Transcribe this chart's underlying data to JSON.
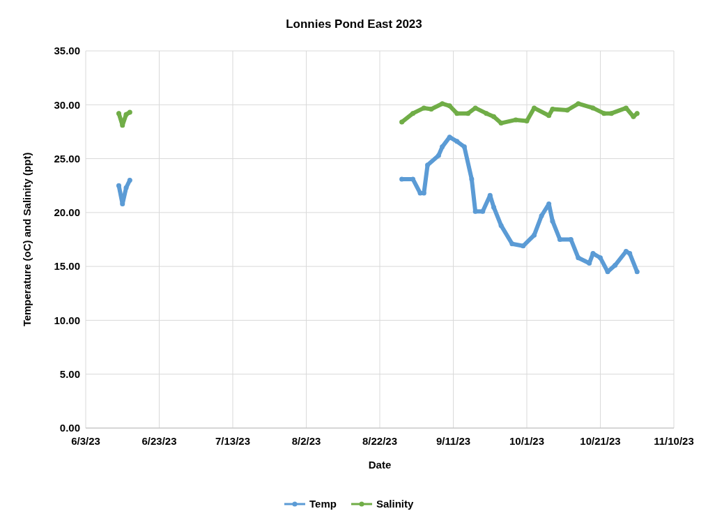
{
  "chart_data": {
    "type": "line",
    "title": "Lonnies Pond East 2023",
    "xlabel": "Date",
    "ylabel": "Temperature (oC) and Salinity (ppt)",
    "xlim": [
      "2023-06-03",
      "2023-11-10"
    ],
    "xticks": [
      {
        "value": "2023-06-03",
        "label": "6/3/23"
      },
      {
        "value": "2023-06-23",
        "label": "6/23/23"
      },
      {
        "value": "2023-07-13",
        "label": "7/13/23"
      },
      {
        "value": "2023-08-02",
        "label": "8/2/23"
      },
      {
        "value": "2023-08-22",
        "label": "8/22/23"
      },
      {
        "value": "2023-09-11",
        "label": "9/11/23"
      },
      {
        "value": "2023-10-01",
        "label": "10/1/23"
      },
      {
        "value": "2023-10-21",
        "label": "10/21/23"
      },
      {
        "value": "2023-11-10",
        "label": "11/10/23"
      }
    ],
    "ylim": [
      0,
      35
    ],
    "yticks": [
      {
        "value": 0,
        "label": "0.00"
      },
      {
        "value": 5,
        "label": "5.00"
      },
      {
        "value": 10,
        "label": "10.00"
      },
      {
        "value": 15,
        "label": "15.00"
      },
      {
        "value": 20,
        "label": "20.00"
      },
      {
        "value": 25,
        "label": "25.00"
      },
      {
        "value": 30,
        "label": "30.00"
      },
      {
        "value": 35,
        "label": "35.00"
      }
    ],
    "grid": true,
    "legend": "bottom",
    "marker": "circle",
    "line_style": "solid",
    "series": [
      {
        "name": "Temp",
        "color": "#5b9bd5",
        "x": [
          "2023-06-12",
          "2023-06-13",
          "2023-06-14",
          "2023-06-15",
          "2023-07-20",
          "2023-08-28",
          "2023-08-31",
          "2023-09-02",
          "2023-09-03",
          "2023-09-04",
          "2023-09-07",
          "2023-09-08",
          "2023-09-10",
          "2023-09-12",
          "2023-09-14",
          "2023-09-16",
          "2023-09-17",
          "2023-09-19",
          "2023-09-21",
          "2023-09-22",
          "2023-09-24",
          "2023-09-27",
          "2023-09-30",
          "2023-10-03",
          "2023-10-05",
          "2023-10-07",
          "2023-10-08",
          "2023-10-10",
          "2023-10-13",
          "2023-10-15",
          "2023-10-18",
          "2023-10-19",
          "2023-10-21",
          "2023-10-23",
          "2023-10-25",
          "2023-10-28",
          "2023-10-29",
          "2023-10-31"
        ],
        "values": [
          22.5,
          20.8,
          22.3,
          23.0,
          null,
          23.1,
          23.1,
          21.8,
          21.8,
          24.4,
          25.3,
          26.1,
          27.0,
          26.6,
          26.1,
          23.1,
          20.1,
          20.1,
          21.6,
          20.5,
          18.8,
          17.1,
          16.9,
          17.9,
          19.7,
          20.8,
          19.2,
          17.5,
          17.5,
          15.8,
          15.3,
          16.2,
          15.8,
          14.5,
          15.1,
          16.4,
          16.2,
          14.5
        ]
      },
      {
        "name": "Salinity",
        "color": "#70ad47",
        "x": [
          "2023-06-12",
          "2023-06-13",
          "2023-06-14",
          "2023-06-15",
          "2023-07-20",
          "2023-08-28",
          "2023-08-31",
          "2023-09-03",
          "2023-09-05",
          "2023-09-08",
          "2023-09-10",
          "2023-09-12",
          "2023-09-15",
          "2023-09-17",
          "2023-09-20",
          "2023-09-22",
          "2023-09-24",
          "2023-09-28",
          "2023-10-01",
          "2023-10-03",
          "2023-10-07",
          "2023-10-08",
          "2023-10-12",
          "2023-10-15",
          "2023-10-19",
          "2023-10-22",
          "2023-10-24",
          "2023-10-28",
          "2023-10-30",
          "2023-10-31"
        ],
        "values": [
          29.2,
          28.1,
          29.1,
          29.3,
          null,
          28.4,
          29.2,
          29.7,
          29.6,
          30.1,
          29.9,
          29.2,
          29.2,
          29.7,
          29.2,
          28.9,
          28.3,
          28.6,
          28.5,
          29.7,
          29.0,
          29.6,
          29.5,
          30.1,
          29.7,
          29.2,
          29.2,
          29.7,
          28.9,
          29.2
        ]
      }
    ]
  }
}
